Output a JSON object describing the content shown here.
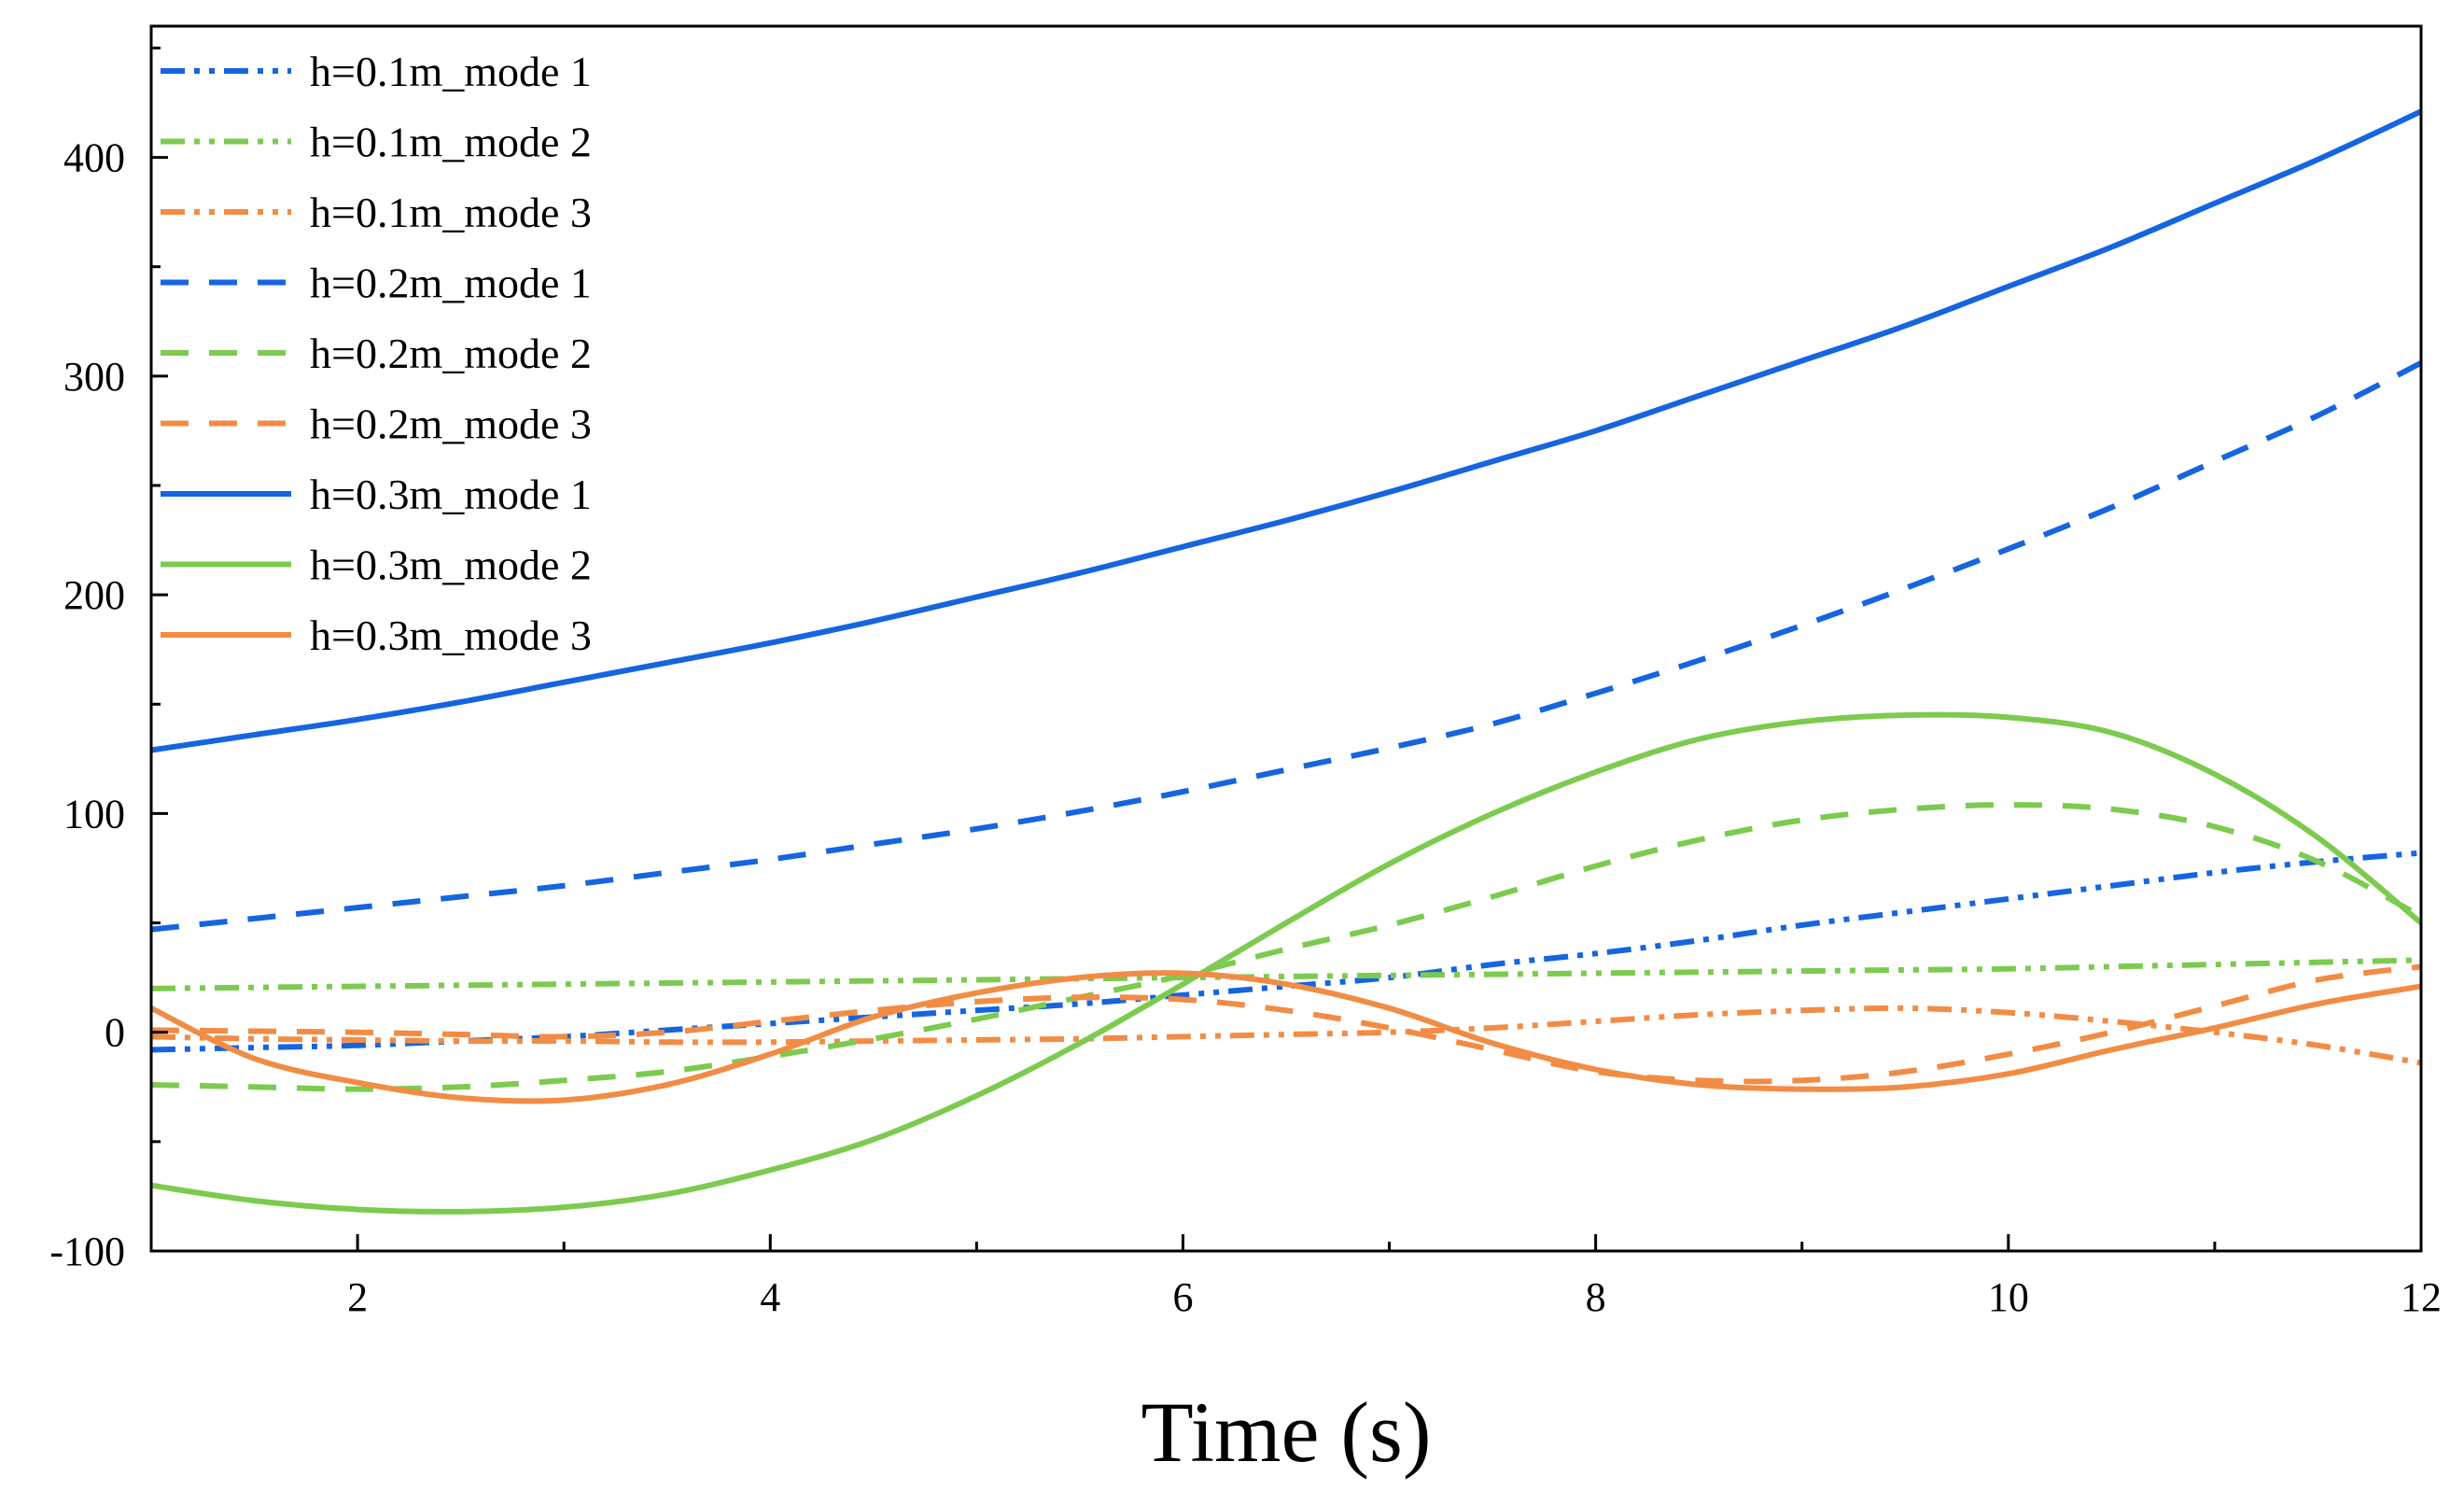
{
  "chart_data": {
    "type": "line",
    "title": "",
    "xlabel": "Time (s)",
    "ylabel": "",
    "xlim": [
      1,
      12
    ],
    "ylim": [
      -100,
      460
    ],
    "xticks": [
      2,
      4,
      6,
      8,
      10,
      12
    ],
    "yticks": [
      -100,
      0,
      100,
      200,
      300,
      400
    ],
    "xtick_labels": [
      "2",
      "4",
      "6",
      "8",
      "10",
      "12"
    ],
    "ytick_labels": [
      "-100",
      "0",
      "100",
      "200",
      "300",
      "400"
    ],
    "legend_position": "top-left",
    "x": [
      1,
      1.5,
      2,
      2.5,
      3,
      3.5,
      4,
      4.5,
      5,
      5.5,
      6,
      6.5,
      7,
      7.5,
      8,
      8.5,
      9,
      9.5,
      10,
      10.5,
      11,
      11.5,
      12
    ],
    "series": [
      {
        "name": "h=0.1m_mode 1",
        "color": "#1565e0",
        "dash": "dashdotdot",
        "values": [
          -8,
          -7,
          -6,
          -4,
          -2,
          1,
          4,
          7,
          10,
          13,
          17,
          21,
          25,
          31,
          36,
          42,
          49,
          55,
          61,
          67,
          73,
          78,
          82
        ]
      },
      {
        "name": "h=0.1m_mode 2",
        "color": "#7ccb4f",
        "dash": "dashdotdot",
        "values": [
          20,
          20.5,
          21,
          21.5,
          22,
          22.5,
          23,
          23.5,
          24,
          24.5,
          25,
          25.5,
          26,
          26.5,
          27,
          27.5,
          28,
          28.5,
          29,
          30,
          31,
          32,
          33
        ]
      },
      {
        "name": "h=0.1m_mode 3",
        "color": "#f28c45",
        "dash": "dashdotdot",
        "values": [
          -2,
          -3,
          -3.5,
          -4,
          -4,
          -4.5,
          -4.5,
          -4,
          -3.5,
          -3,
          -2,
          -1,
          0,
          2,
          5,
          8,
          10,
          11,
          9,
          5,
          0,
          -6,
          -14
        ]
      },
      {
        "name": "h=0.2m_mode 1",
        "color": "#1565e0",
        "dash": "dash",
        "values": [
          47,
          52,
          57,
          62,
          67,
          73,
          79,
          86,
          93,
          101,
          110,
          120,
          130,
          141,
          155,
          170,
          186,
          203,
          221,
          240,
          261,
          282,
          306
        ]
      },
      {
        "name": "h=0.2m_mode 2",
        "color": "#7ccb4f",
        "dash": "dash",
        "values": [
          -24,
          -25,
          -26,
          -25,
          -22,
          -18,
          -11,
          -3,
          6,
          16,
          26,
          38,
          49,
          62,
          76,
          88,
          97,
          102,
          104,
          102,
          94,
          78,
          53
        ]
      },
      {
        "name": "h=0.2m_mode 3",
        "color": "#f28c45",
        "dash": "dash",
        "values": [
          1,
          0.5,
          0,
          -1,
          -2,
          0,
          5,
          10,
          14,
          16,
          15,
          10,
          2,
          -8,
          -18,
          -22,
          -22,
          -18,
          -10,
          0,
          12,
          24,
          30
        ]
      },
      {
        "name": "h=0.3m_mode 1",
        "color": "#1565e0",
        "dash": "solid",
        "values": [
          129,
          136,
          143,
          151,
          160,
          169,
          178,
          188,
          199,
          210,
          222,
          234,
          247,
          261,
          275,
          291,
          307,
          323,
          341,
          359,
          379,
          399,
          421
        ]
      },
      {
        "name": "h=0.3m_mode 2",
        "color": "#7ccb4f",
        "dash": "solid",
        "values": [
          -70,
          -77,
          -81,
          -82,
          -80,
          -74,
          -63,
          -49,
          -29,
          -5,
          22,
          50,
          77,
          100,
          119,
          134,
          142,
          145,
          144,
          137,
          118,
          89,
          50
        ]
      },
      {
        "name": "h=0.3m_mode 3",
        "color": "#f28c45",
        "dash": "solid",
        "values": [
          11,
          -12,
          -23,
          -30,
          -31,
          -24,
          -10,
          7,
          18,
          25,
          27,
          22,
          11,
          -5,
          -17,
          -24,
          -26,
          -25,
          -19,
          -8,
          2,
          13,
          21
        ]
      }
    ]
  }
}
